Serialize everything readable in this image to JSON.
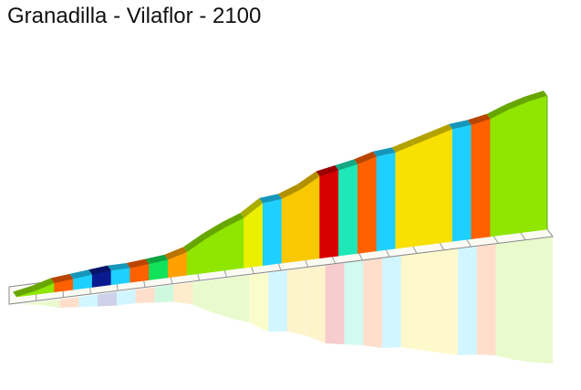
{
  "chart_data": {
    "type": "area",
    "title": "Granadilla - Vilaflor - 2100",
    "style": "3d-elevation-profile-with-reflection",
    "grid": true,
    "segment_count": 28,
    "segments": [
      {
        "color": "#8fe600",
        "h": 2
      },
      {
        "color": "#8fe600",
        "h": 5
      },
      {
        "color": "#ff6000",
        "h": 6
      },
      {
        "color": "#1fd0ff",
        "h": 7
      },
      {
        "color": "#0a1a90",
        "h": 8
      },
      {
        "color": "#1fd0ff",
        "h": 8
      },
      {
        "color": "#ff6000",
        "h": 9
      },
      {
        "color": "#11e25a",
        "h": 10
      },
      {
        "color": "#ffa000",
        "h": 13
      },
      {
        "color": "#8fe600",
        "h": 19
      },
      {
        "color": "#8fe600",
        "h": 24
      },
      {
        "color": "#8fe600",
        "h": 28
      },
      {
        "color": "#eaf000",
        "h": 35
      },
      {
        "color": "#1fd0ff",
        "h": 36
      },
      {
        "color": "#f8c800",
        "h": 40
      },
      {
        "color": "#f8c800",
        "h": 46
      },
      {
        "color": "#d80000",
        "h": 48
      },
      {
        "color": "#1ee8b8",
        "h": 50
      },
      {
        "color": "#ff6000",
        "h": 53
      },
      {
        "color": "#1fd0ff",
        "h": 54
      },
      {
        "color": "#f8e000",
        "h": 57
      },
      {
        "color": "#f8e000",
        "h": 60
      },
      {
        "color": "#f8e000",
        "h": 63
      },
      {
        "color": "#1fd0ff",
        "h": 64
      },
      {
        "color": "#ff6000",
        "h": 66
      },
      {
        "color": "#8fe600",
        "h": 70
      },
      {
        "color": "#8fe600",
        "h": 73
      },
      {
        "color": "#8fe600",
        "h": 75
      }
    ]
  }
}
